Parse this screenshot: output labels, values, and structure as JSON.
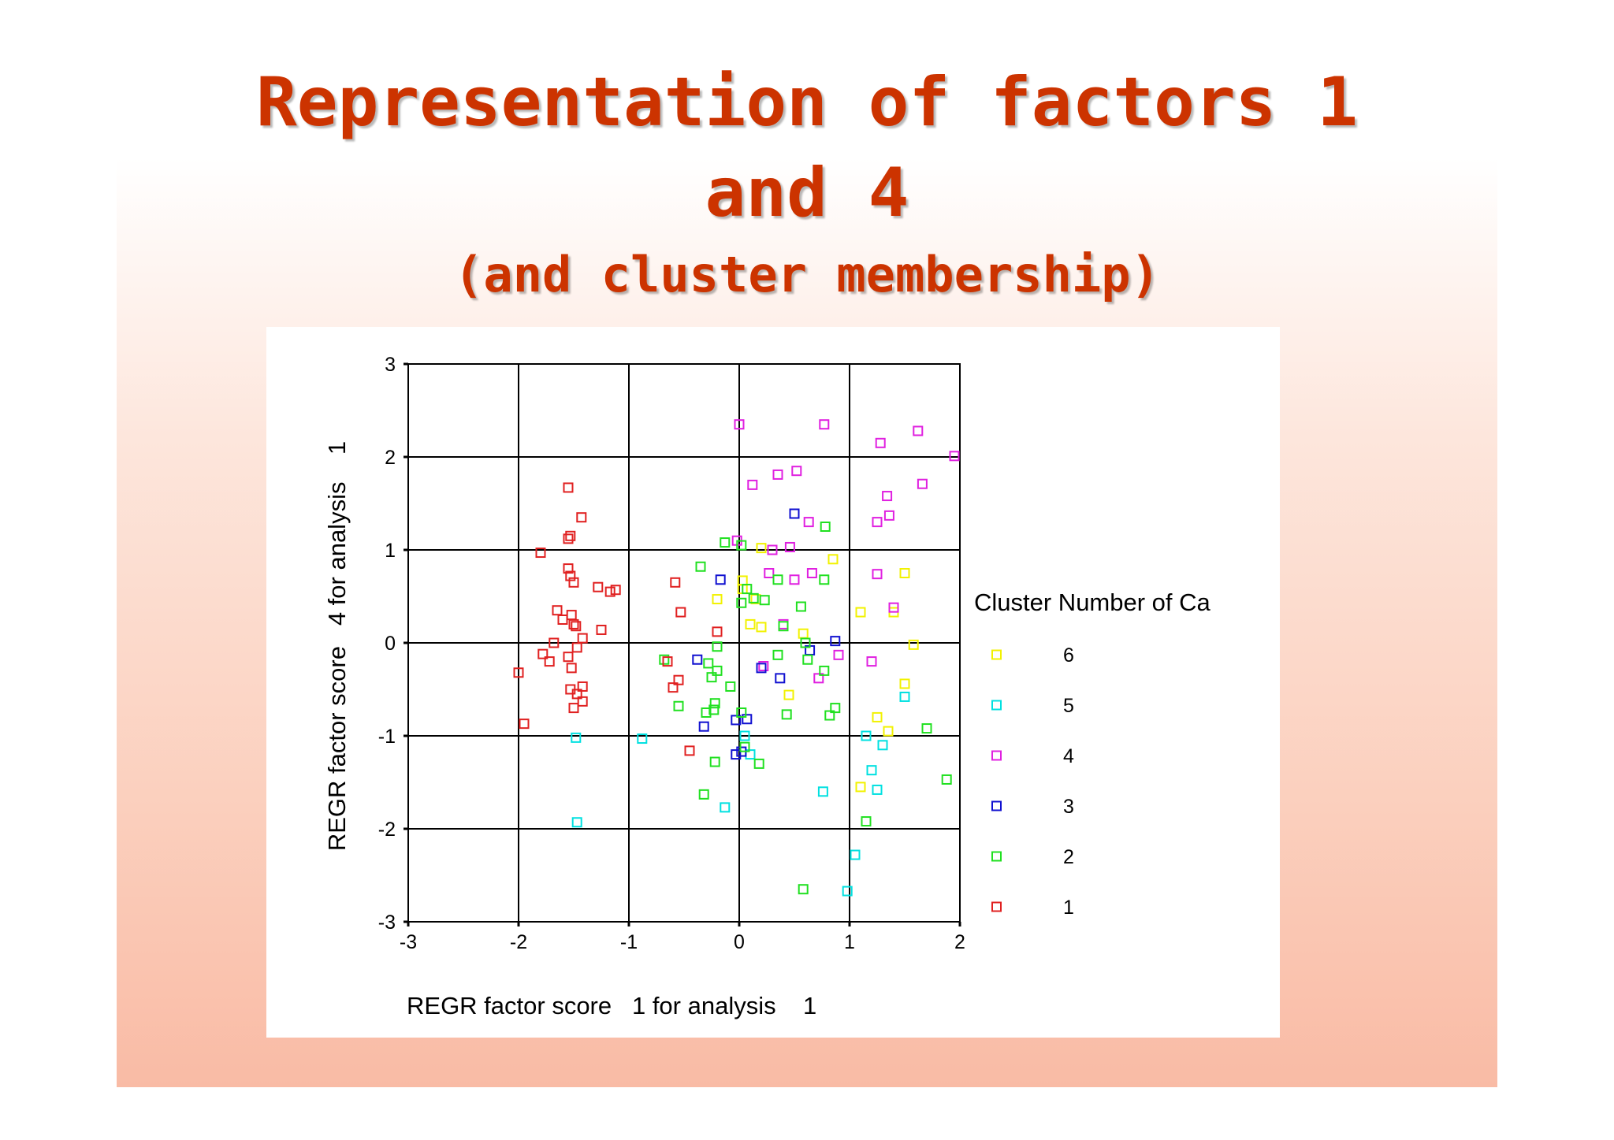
{
  "slide": {
    "title_line1": "Representation of factors 1",
    "title_line2": "and 4",
    "title_line3": "(and cluster membership)"
  },
  "chart_data": {
    "type": "scatter",
    "xlabel": "REGR factor score   1 for analysis    1",
    "ylabel": "REGR factor score   4 for analysis    1",
    "xlim": [
      -3,
      2
    ],
    "ylim": [
      -3,
      3
    ],
    "xticks": [
      "-3",
      "-2",
      "-1",
      "0",
      "1",
      "2"
    ],
    "yticks": [
      "3",
      "2",
      "1",
      "0",
      "-1",
      "-2",
      "-3"
    ],
    "grid": true,
    "marker": "hollow-square",
    "legend": {
      "title": "Cluster Number of Ca",
      "placement": "right",
      "entries": [
        "6",
        "5",
        "4",
        "3",
        "2",
        "1"
      ]
    },
    "series": [
      {
        "name": "6",
        "color": "#f2f200",
        "points": [
          [
            0.2,
            1.02
          ],
          [
            0.85,
            0.9
          ],
          [
            0.03,
            0.67
          ],
          [
            0.03,
            0.58
          ],
          [
            -0.2,
            0.47
          ],
          [
            0.15,
            0.47
          ],
          [
            0.1,
            0.2
          ],
          [
            0.2,
            0.17
          ],
          [
            0.58,
            0.1
          ],
          [
            1.1,
            0.33
          ],
          [
            1.5,
            0.75
          ],
          [
            1.4,
            0.33
          ],
          [
            1.58,
            -0.02
          ],
          [
            1.5,
            -0.44
          ],
          [
            0.45,
            -0.56
          ],
          [
            1.25,
            -0.8
          ],
          [
            1.35,
            -0.95
          ],
          [
            1.1,
            -1.55
          ]
        ]
      },
      {
        "name": "5",
        "color": "#00e0e0",
        "points": [
          [
            -1.48,
            -1.02
          ],
          [
            -0.88,
            -1.03
          ],
          [
            0.05,
            -1.0
          ],
          [
            0.1,
            -1.2
          ],
          [
            -0.13,
            -1.77
          ],
          [
            -1.47,
            -1.93
          ],
          [
            0.76,
            -1.6
          ],
          [
            1.25,
            -1.58
          ],
          [
            1.2,
            -1.37
          ],
          [
            1.3,
            -1.1
          ],
          [
            1.15,
            -1.0
          ],
          [
            1.5,
            -0.58
          ],
          [
            1.05,
            -2.28
          ],
          [
            0.98,
            -2.67
          ]
        ]
      },
      {
        "name": "4",
        "color": "#e020e0",
        "points": [
          [
            0.0,
            2.35
          ],
          [
            0.77,
            2.35
          ],
          [
            1.62,
            2.28
          ],
          [
            1.28,
            2.15
          ],
          [
            1.95,
            2.01
          ],
          [
            0.12,
            1.7
          ],
          [
            0.35,
            1.81
          ],
          [
            0.52,
            1.85
          ],
          [
            1.66,
            1.71
          ],
          [
            1.34,
            1.58
          ],
          [
            1.36,
            1.37
          ],
          [
            1.25,
            1.3
          ],
          [
            0.63,
            1.3
          ],
          [
            -0.02,
            1.1
          ],
          [
            0.3,
            1.0
          ],
          [
            0.46,
            1.03
          ],
          [
            0.27,
            0.75
          ],
          [
            0.66,
            0.75
          ],
          [
            1.25,
            0.74
          ],
          [
            0.5,
            0.68
          ],
          [
            1.4,
            0.38
          ],
          [
            0.4,
            0.2
          ],
          [
            0.9,
            -0.13
          ],
          [
            0.22,
            -0.25
          ],
          [
            0.72,
            -0.38
          ],
          [
            1.2,
            -0.2
          ]
        ]
      },
      {
        "name": "3",
        "color": "#1010d0",
        "points": [
          [
            0.5,
            1.39
          ],
          [
            -0.17,
            0.68
          ],
          [
            0.87,
            0.02
          ],
          [
            0.64,
            -0.08
          ],
          [
            -0.38,
            -0.18
          ],
          [
            0.2,
            -0.27
          ],
          [
            0.37,
            -0.38
          ],
          [
            -0.03,
            -0.83
          ],
          [
            0.07,
            -0.82
          ],
          [
            -0.32,
            -0.9
          ],
          [
            0.02,
            -1.17
          ],
          [
            -0.03,
            -1.2
          ]
        ]
      },
      {
        "name": "2",
        "color": "#20e020",
        "points": [
          [
            -0.13,
            1.08
          ],
          [
            0.02,
            1.05
          ],
          [
            0.78,
            1.25
          ],
          [
            -0.35,
            0.82
          ],
          [
            0.07,
            0.58
          ],
          [
            0.13,
            0.48
          ],
          [
            0.23,
            0.46
          ],
          [
            0.02,
            0.43
          ],
          [
            0.35,
            0.68
          ],
          [
            0.77,
            0.68
          ],
          [
            0.56,
            0.39
          ],
          [
            0.4,
            0.18
          ],
          [
            0.6,
            0.0
          ],
          [
            -0.2,
            -0.04
          ],
          [
            -0.68,
            -0.18
          ],
          [
            0.35,
            -0.13
          ],
          [
            -0.28,
            -0.22
          ],
          [
            0.62,
            -0.18
          ],
          [
            -0.2,
            -0.3
          ],
          [
            -0.25,
            -0.37
          ],
          [
            0.77,
            -0.3
          ],
          [
            -0.08,
            -0.47
          ],
          [
            -0.22,
            -0.65
          ],
          [
            -0.55,
            -0.68
          ],
          [
            0.87,
            -0.7
          ],
          [
            -0.3,
            -0.75
          ],
          [
            -0.23,
            -0.72
          ],
          [
            0.02,
            -0.75
          ],
          [
            0.43,
            -0.77
          ],
          [
            0.82,
            -0.78
          ],
          [
            1.7,
            -0.92
          ],
          [
            0.05,
            -1.12
          ],
          [
            0.18,
            -1.3
          ],
          [
            -0.22,
            -1.28
          ],
          [
            -0.32,
            -1.63
          ],
          [
            1.88,
            -1.47
          ],
          [
            1.15,
            -1.92
          ],
          [
            0.58,
            -2.65
          ]
        ]
      },
      {
        "name": "1",
        "color": "#e02020",
        "points": [
          [
            -1.55,
            1.67
          ],
          [
            -1.43,
            1.35
          ],
          [
            -1.53,
            1.15
          ],
          [
            -1.55,
            1.12
          ],
          [
            -1.8,
            0.97
          ],
          [
            -1.55,
            0.8
          ],
          [
            -1.53,
            0.72
          ],
          [
            -1.5,
            0.65
          ],
          [
            -1.28,
            0.6
          ],
          [
            -1.17,
            0.55
          ],
          [
            -1.12,
            0.57
          ],
          [
            -0.58,
            0.65
          ],
          [
            -1.65,
            0.35
          ],
          [
            -1.52,
            0.3
          ],
          [
            -1.6,
            0.25
          ],
          [
            -1.5,
            0.2
          ],
          [
            -1.48,
            0.18
          ],
          [
            -1.25,
            0.14
          ],
          [
            -1.42,
            0.05
          ],
          [
            -0.53,
            0.33
          ],
          [
            -0.2,
            0.12
          ],
          [
            -1.68,
            0.0
          ],
          [
            -1.47,
            -0.05
          ],
          [
            -1.78,
            -0.12
          ],
          [
            -1.55,
            -0.15
          ],
          [
            -1.72,
            -0.2
          ],
          [
            -1.52,
            -0.27
          ],
          [
            -0.65,
            -0.2
          ],
          [
            -2.0,
            -0.32
          ],
          [
            -0.55,
            -0.4
          ],
          [
            -0.6,
            -0.48
          ],
          [
            -1.42,
            -0.47
          ],
          [
            -1.53,
            -0.5
          ],
          [
            -1.47,
            -0.55
          ],
          [
            -1.42,
            -0.63
          ],
          [
            -1.5,
            -0.7
          ],
          [
            -1.95,
            -0.87
          ],
          [
            -0.45,
            -1.16
          ]
        ]
      }
    ]
  }
}
